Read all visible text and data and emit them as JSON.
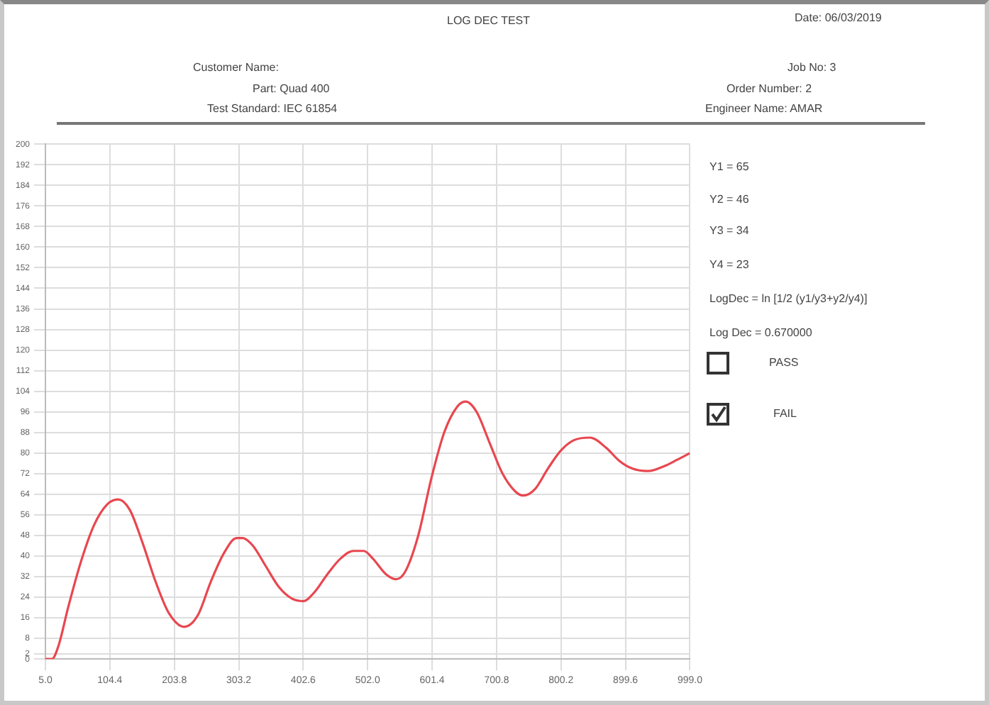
{
  "chart_data": {
    "type": "line",
    "title": "LOG DEC TEST",
    "annotations": [
      "Date: 06/03/2019",
      "Customer Name:",
      "Job No: 3",
      "Part: Quad 400",
      "Order Number: 2",
      "Test Standard: IEC 61854",
      "Engineer Name: AMAR",
      "Y1 = 65",
      "Y2 = 46",
      "Y3 = 34",
      "Y4 = 23",
      "LogDec = ln [1/2 (y1/y3+y2/y4)]",
      "Log Dec = 0.670000",
      "PASS",
      "FAIL"
    ],
    "xlim": [
      5.0,
      999.0
    ],
    "xticks": [
      {
        "value": 5.0,
        "label": "5.0"
      },
      104.4,
      203.8,
      303.2,
      402.6,
      {
        "value": 502.0,
        "label": "502.0"
      },
      601.4,
      700.8,
      800.2,
      899.6,
      {
        "value": 999.0,
        "label": "999.0"
      }
    ],
    "ylim": [
      0,
      200
    ],
    "yticks": [
      0,
      2,
      8,
      16,
      24,
      32,
      40,
      48,
      56,
      64,
      72,
      80,
      88,
      96,
      104,
      112,
      120,
      128,
      136,
      144,
      152,
      160,
      168,
      176,
      184,
      192,
      200
    ],
    "grid": true,
    "marker": "none",
    "line_style": "solid",
    "series": [
      {
        "color": "#e8474f",
        "x": [
          5,
          15,
          25,
          40,
          60,
          80,
          100,
          117,
          135,
          155,
          175,
          195,
          219,
          240,
          260,
          280,
          300,
          309,
          325,
          345,
          365,
          385,
          403,
          420,
          440,
          460,
          480,
          496,
          510,
          530,
          546,
          560,
          580,
          600,
          620,
          640,
          653,
          670,
          690,
          710,
          730,
          742,
          760,
          780,
          800,
          820,
          845,
          870,
          890,
          910,
          934,
          960,
          980,
          999
        ],
        "values": [
          0,
          0,
          5,
          20,
          38,
          52,
          60,
          62,
          58,
          45,
          30,
          18,
          12.5,
          17,
          30,
          41,
          47,
          47,
          44,
          36,
          28,
          23.5,
          22.5,
          26,
          33,
          39,
          42,
          42,
          39,
          33,
          31,
          34,
          48,
          70,
          88,
          98,
          100,
          96,
          84,
          72,
          65,
          63.5,
          66,
          74,
          81,
          85,
          86,
          82,
          77,
          74,
          73,
          75,
          77.5,
          80
        ]
      }
    ]
  }
}
